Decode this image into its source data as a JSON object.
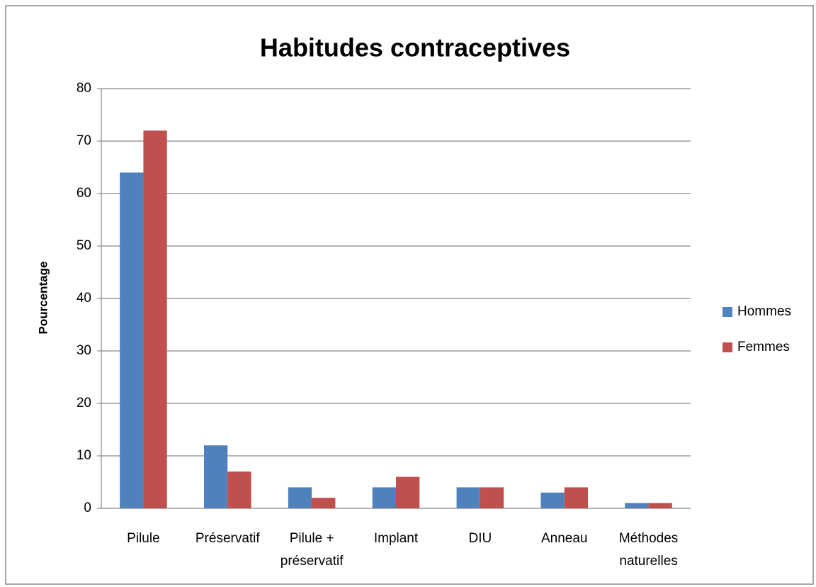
{
  "chart_data": {
    "type": "bar",
    "title": "Habitudes contraceptives",
    "y_label": "Pourcentage",
    "categories": [
      "Pilule",
      "Préservatif",
      "Pilule + préservatif",
      "Implant",
      "DIU",
      "Anneau",
      "Méthodes naturelles"
    ],
    "series": [
      {
        "name": "Hommes",
        "color": "#4f81bd",
        "values": [
          64,
          12,
          4,
          4,
          4,
          3,
          1
        ]
      },
      {
        "name": "Femmes",
        "color": "#c0504d",
        "values": [
          72,
          7,
          2,
          6,
          4,
          4,
          1
        ]
      }
    ],
    "ylim": [
      0,
      80
    ],
    "yticks": [
      0,
      10,
      20,
      30,
      40,
      50,
      60,
      70,
      80
    ],
    "grid": true,
    "legend": "right"
  }
}
